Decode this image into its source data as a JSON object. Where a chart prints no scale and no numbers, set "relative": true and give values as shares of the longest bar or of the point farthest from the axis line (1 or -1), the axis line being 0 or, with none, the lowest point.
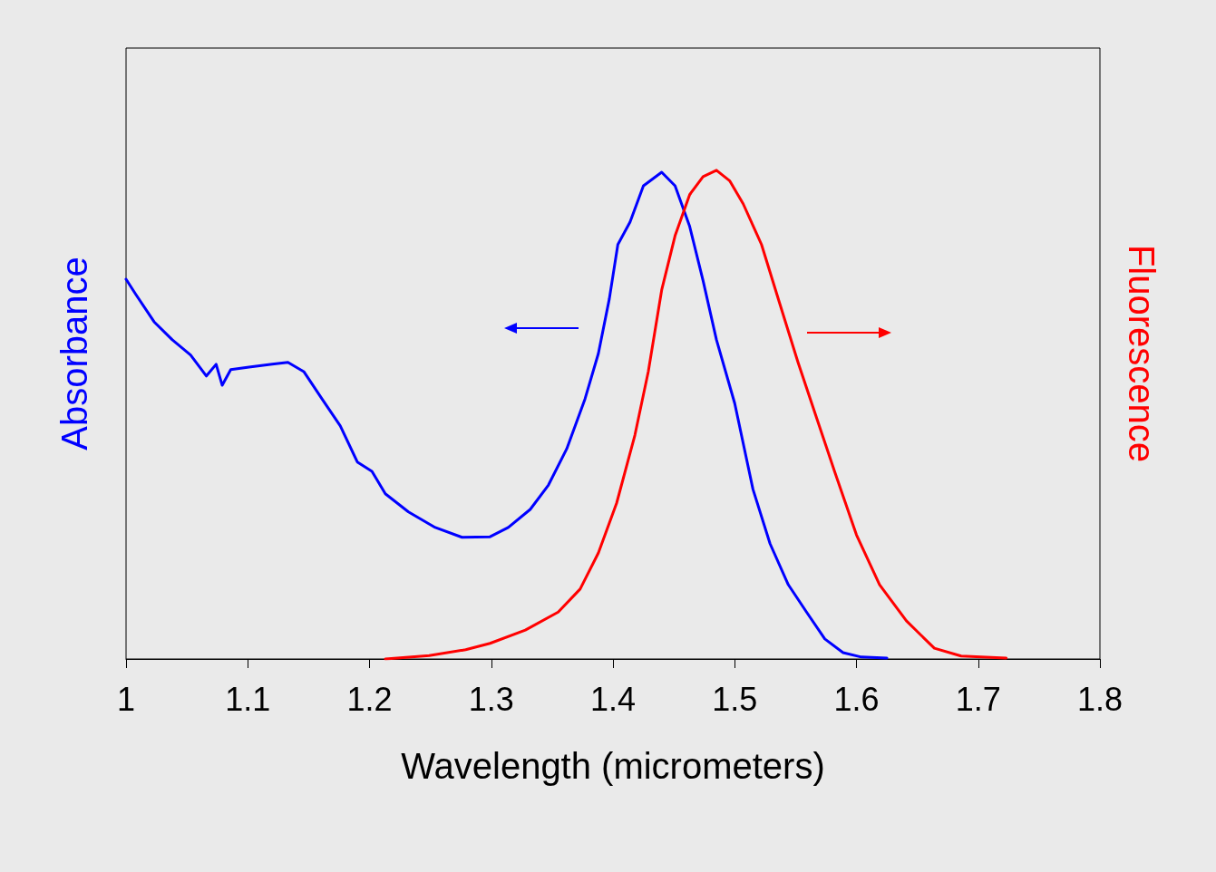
{
  "chart_data": {
    "type": "line",
    "relative": true,
    "xlabel": "Wavelength (micrometers)",
    "ylabel": "Absorbance",
    "y2label": "Fluorescence",
    "xlim": [
      1,
      1.8
    ],
    "xticks": [
      1,
      1.1,
      1.2,
      1.3,
      1.4,
      1.5,
      1.6,
      1.7,
      1.8
    ],
    "grid": false,
    "marker": "none",
    "line_style": "solid",
    "series": [
      {
        "color": "#0000ff",
        "x": [
          1.0,
          1.008,
          1.023,
          1.038,
          1.053,
          1.066,
          1.074,
          1.079,
          1.086,
          1.101,
          1.12,
          1.133,
          1.146,
          1.161,
          1.176,
          1.19,
          1.202,
          1.213,
          1.232,
          1.254,
          1.276,
          1.299,
          1.314,
          1.332,
          1.347,
          1.362,
          1.377,
          1.388,
          1.397,
          1.404,
          1.414,
          1.425,
          1.44,
          1.451,
          1.463,
          1.474,
          1.485,
          1.5,
          1.515,
          1.529,
          1.544,
          1.559,
          1.574,
          1.589,
          1.604,
          1.625
        ],
        "values": [
          0.777,
          0.746,
          0.69,
          0.653,
          0.622,
          0.579,
          0.603,
          0.56,
          0.592,
          0.597,
          0.603,
          0.607,
          0.588,
          0.532,
          0.477,
          0.403,
          0.384,
          0.338,
          0.301,
          0.269,
          0.249,
          0.25,
          0.269,
          0.306,
          0.356,
          0.43,
          0.532,
          0.625,
          0.737,
          0.848,
          0.894,
          0.968,
          0.996,
          0.968,
          0.885,
          0.774,
          0.653,
          0.523,
          0.347,
          0.236,
          0.152,
          0.096,
          0.041,
          0.013,
          0.004,
          0.002
        ]
      },
      {
        "color": "#ff0000",
        "axis": "y2",
        "x": [
          1.213,
          1.249,
          1.279,
          1.299,
          1.328,
          1.355,
          1.373,
          1.388,
          1.403,
          1.418,
          1.429,
          1.44,
          1.451,
          1.463,
          1.474,
          1.485,
          1.496,
          1.507,
          1.522,
          1.537,
          1.552,
          1.567,
          1.582,
          1.6,
          1.619,
          1.641,
          1.664,
          1.686,
          1.723
        ],
        "values": [
          0,
          0.007,
          0.019,
          0.032,
          0.059,
          0.096,
          0.143,
          0.217,
          0.319,
          0.458,
          0.588,
          0.755,
          0.866,
          0.95,
          0.987,
          1.0,
          0.978,
          0.931,
          0.848,
          0.727,
          0.607,
          0.495,
          0.384,
          0.254,
          0.152,
          0.078,
          0.022,
          0.006,
          0.002
        ]
      }
    ]
  }
}
